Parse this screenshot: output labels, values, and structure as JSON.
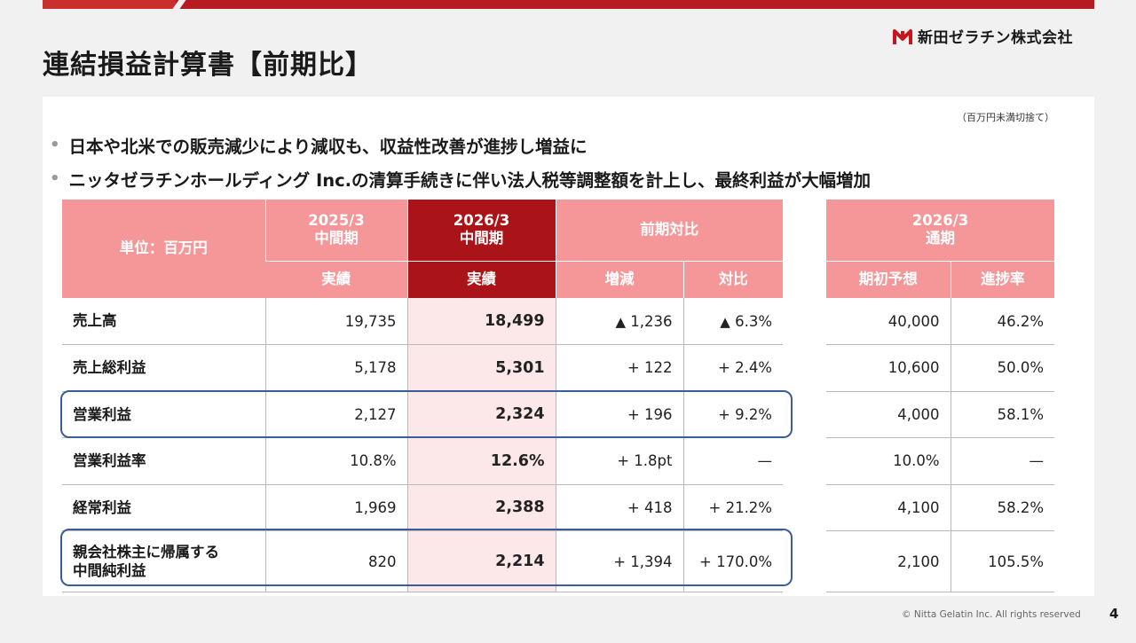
{
  "header": {
    "title": "連結損益計算書【前期比】",
    "company": "新田ゼラチン株式会社",
    "brand_color": "#b51b20"
  },
  "note": "（百万円未満切捨て）",
  "bullets": [
    "日本や北米での販売減少により減収も、収益性改善が進捗し増益に",
    "ニッタゼラチンホールディング Inc.の清算手続きに伴い法人税等調整額を計上し、最終利益が大幅増加"
  ],
  "table": {
    "unit_label": "単位：百万円",
    "col_prev": "2025/3\n中間期",
    "col_curr": "2026/3\n中間期",
    "col_comp": "前期対比",
    "sub_actual_prev": "実績",
    "sub_actual_curr": "実績",
    "sub_change": "増減",
    "sub_ratio": "対比",
    "rows": [
      {
        "label": "売上高",
        "prev": "19,735",
        "curr": "18,499",
        "change_mark": "▲",
        "change": " 1,236",
        "ratio_mark": "▲",
        "ratio": " 6.3%"
      },
      {
        "label": "売上総利益",
        "prev": "5,178",
        "curr": "5,301",
        "change_mark": "",
        "change": "+ 122",
        "ratio_mark": "",
        "ratio": "+ 2.4%"
      },
      {
        "label": "営業利益",
        "prev": "2,127",
        "curr": "2,324",
        "change_mark": "",
        "change": "+ 196",
        "ratio_mark": "",
        "ratio": "+ 9.2%"
      },
      {
        "label": "営業利益率",
        "prev": "10.8%",
        "curr": "12.6%",
        "change_mark": "",
        "change": "+ 1.8pt",
        "ratio_mark": "",
        "ratio": "—"
      },
      {
        "label": "経常利益",
        "prev": "1,969",
        "curr": "2,388",
        "change_mark": "",
        "change": "+ 418",
        "ratio_mark": "",
        "ratio": "+ 21.2%"
      },
      {
        "label": "親会社株主に帰属する\n中間純利益",
        "prev": "820",
        "curr": "2,214",
        "change_mark": "",
        "change": "+ 1,394",
        "ratio_mark": "",
        "ratio": "+ 170.0%"
      }
    ]
  },
  "plan_table": {
    "col_header": "2026/3\n通期",
    "sub_forecast": "期初予想",
    "sub_progress": "進捗率",
    "rows": [
      {
        "forecast": "40,000",
        "progress": "46.2%"
      },
      {
        "forecast": "10,600",
        "progress": "50.0%"
      },
      {
        "forecast": "4,000",
        "progress": "58.1%"
      },
      {
        "forecast": "10.0%",
        "progress": "—"
      },
      {
        "forecast": "4,100",
        "progress": "58.2%"
      },
      {
        "forecast": "2,100",
        "progress": "105.5%"
      }
    ]
  },
  "footer": {
    "copyright": "© Nitta Gelatin Inc. All rights reserved",
    "page_number": "4"
  }
}
